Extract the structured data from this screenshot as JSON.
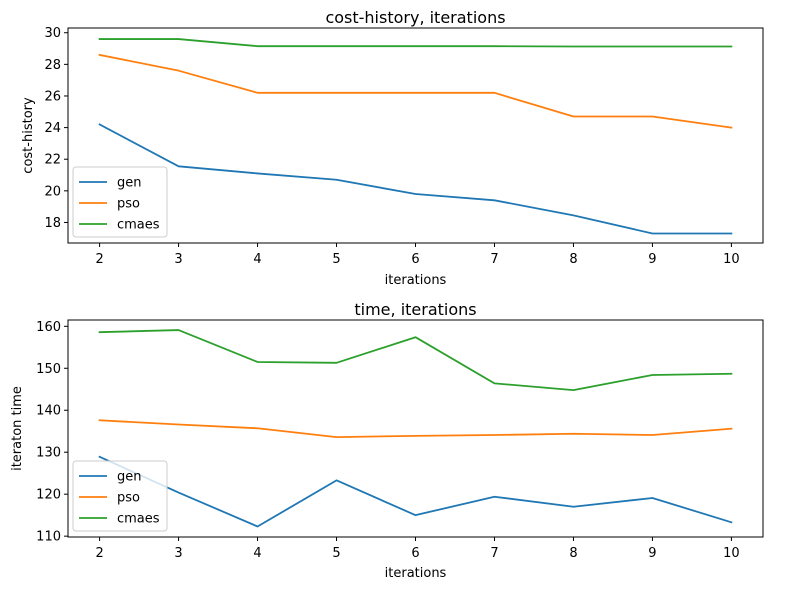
{
  "chart_data": [
    {
      "type": "line",
      "title": "cost-history, iterations",
      "xlabel": "iterations",
      "ylabel": "cost-history",
      "x": [
        2,
        3,
        4,
        5,
        6,
        7,
        8,
        9,
        10
      ],
      "xticks": [
        2,
        3,
        4,
        5,
        6,
        7,
        8,
        9,
        10
      ],
      "xlim": [
        1.6,
        10.4
      ],
      "yticks": [
        18,
        20,
        22,
        24,
        26,
        28,
        30
      ],
      "ylim": [
        16.7,
        30.3
      ],
      "legend": "lower-left",
      "grid": false,
      "series": [
        {
          "name": "gen",
          "color": "#1f77b4",
          "values": [
            24.2,
            21.55,
            21.1,
            20.7,
            19.8,
            19.4,
            18.45,
            17.3,
            17.3
          ]
        },
        {
          "name": "pso",
          "color": "#ff7f0e",
          "values": [
            28.6,
            27.6,
            26.2,
            26.2,
            26.2,
            26.2,
            24.7,
            24.7,
            24.0
          ]
        },
        {
          "name": "cmaes",
          "color": "#2ca02c",
          "values": [
            29.6,
            29.6,
            29.15,
            29.15,
            29.15,
            29.15,
            29.13,
            29.13,
            29.13
          ]
        }
      ]
    },
    {
      "type": "line",
      "title": "time, iterations",
      "xlabel": "iterations",
      "ylabel": "iteraton time",
      "x": [
        2,
        3,
        4,
        5,
        6,
        7,
        8,
        9,
        10
      ],
      "xticks": [
        2,
        3,
        4,
        5,
        6,
        7,
        8,
        9,
        10
      ],
      "xlim": [
        1.6,
        10.4
      ],
      "yticks": [
        110,
        120,
        130,
        140,
        150,
        160
      ],
      "ylim": [
        109.8,
        161.5
      ],
      "legend": "lower-left",
      "grid": false,
      "series": [
        {
          "name": "gen",
          "color": "#1f77b4",
          "values": [
            128.9,
            120.4,
            112.3,
            123.3,
            115.0,
            119.4,
            117.0,
            119.1,
            113.3
          ]
        },
        {
          "name": "pso",
          "color": "#ff7f0e",
          "values": [
            137.6,
            136.6,
            135.7,
            133.6,
            133.9,
            134.1,
            134.4,
            134.1,
            135.6
          ]
        },
        {
          "name": "cmaes",
          "color": "#2ca02c",
          "values": [
            158.6,
            159.1,
            151.5,
            151.3,
            157.4,
            146.4,
            144.8,
            148.4,
            148.7
          ]
        }
      ]
    }
  ]
}
